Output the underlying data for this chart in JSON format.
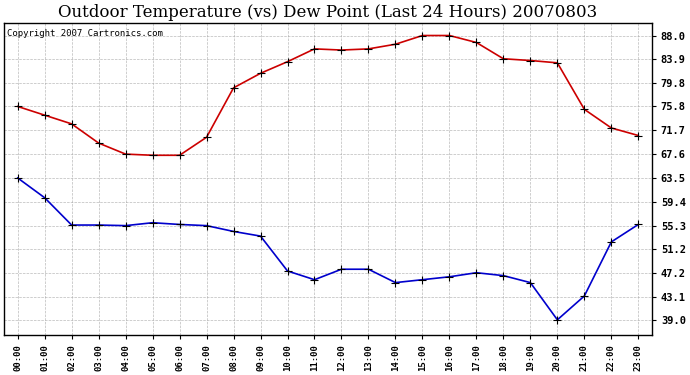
{
  "title": "Outdoor Temperature (vs) Dew Point (Last 24 Hours) 20070803",
  "copyright_text": "Copyright 2007 Cartronics.com",
  "hours": [
    "00:00",
    "01:00",
    "02:00",
    "03:00",
    "04:00",
    "05:00",
    "06:00",
    "07:00",
    "08:00",
    "09:00",
    "10:00",
    "11:00",
    "12:00",
    "13:00",
    "14:00",
    "15:00",
    "16:00",
    "17:00",
    "18:00",
    "19:00",
    "20:00",
    "21:00",
    "22:00",
    "23:00"
  ],
  "temp": [
    75.8,
    74.3,
    72.8,
    69.5,
    67.6,
    67.4,
    67.4,
    70.5,
    79.0,
    81.5,
    83.5,
    85.7,
    85.5,
    85.7,
    86.5,
    88.0,
    88.0,
    86.8,
    84.0,
    83.7,
    83.3,
    75.3,
    72.1,
    70.8
  ],
  "dew": [
    63.5,
    60.1,
    55.4,
    55.4,
    55.3,
    55.8,
    55.5,
    55.3,
    54.3,
    53.5,
    47.5,
    46.0,
    47.8,
    47.8,
    45.5,
    46.0,
    46.5,
    47.2,
    46.7,
    45.5,
    39.1,
    43.2,
    52.5,
    55.5
  ],
  "temp_color": "#cc0000",
  "dew_color": "#0000cc",
  "bg_color": "#ffffff",
  "plot_bg_color": "#ffffff",
  "grid_color": "#aaaaaa",
  "yticks": [
    39.0,
    43.1,
    47.2,
    51.2,
    55.3,
    59.4,
    63.5,
    67.6,
    71.7,
    75.8,
    79.8,
    83.9,
    88.0
  ],
  "ylim": [
    36.5,
    90.2
  ],
  "title_fontsize": 12,
  "marker": "+",
  "marker_size": 6,
  "line_width": 1.2
}
